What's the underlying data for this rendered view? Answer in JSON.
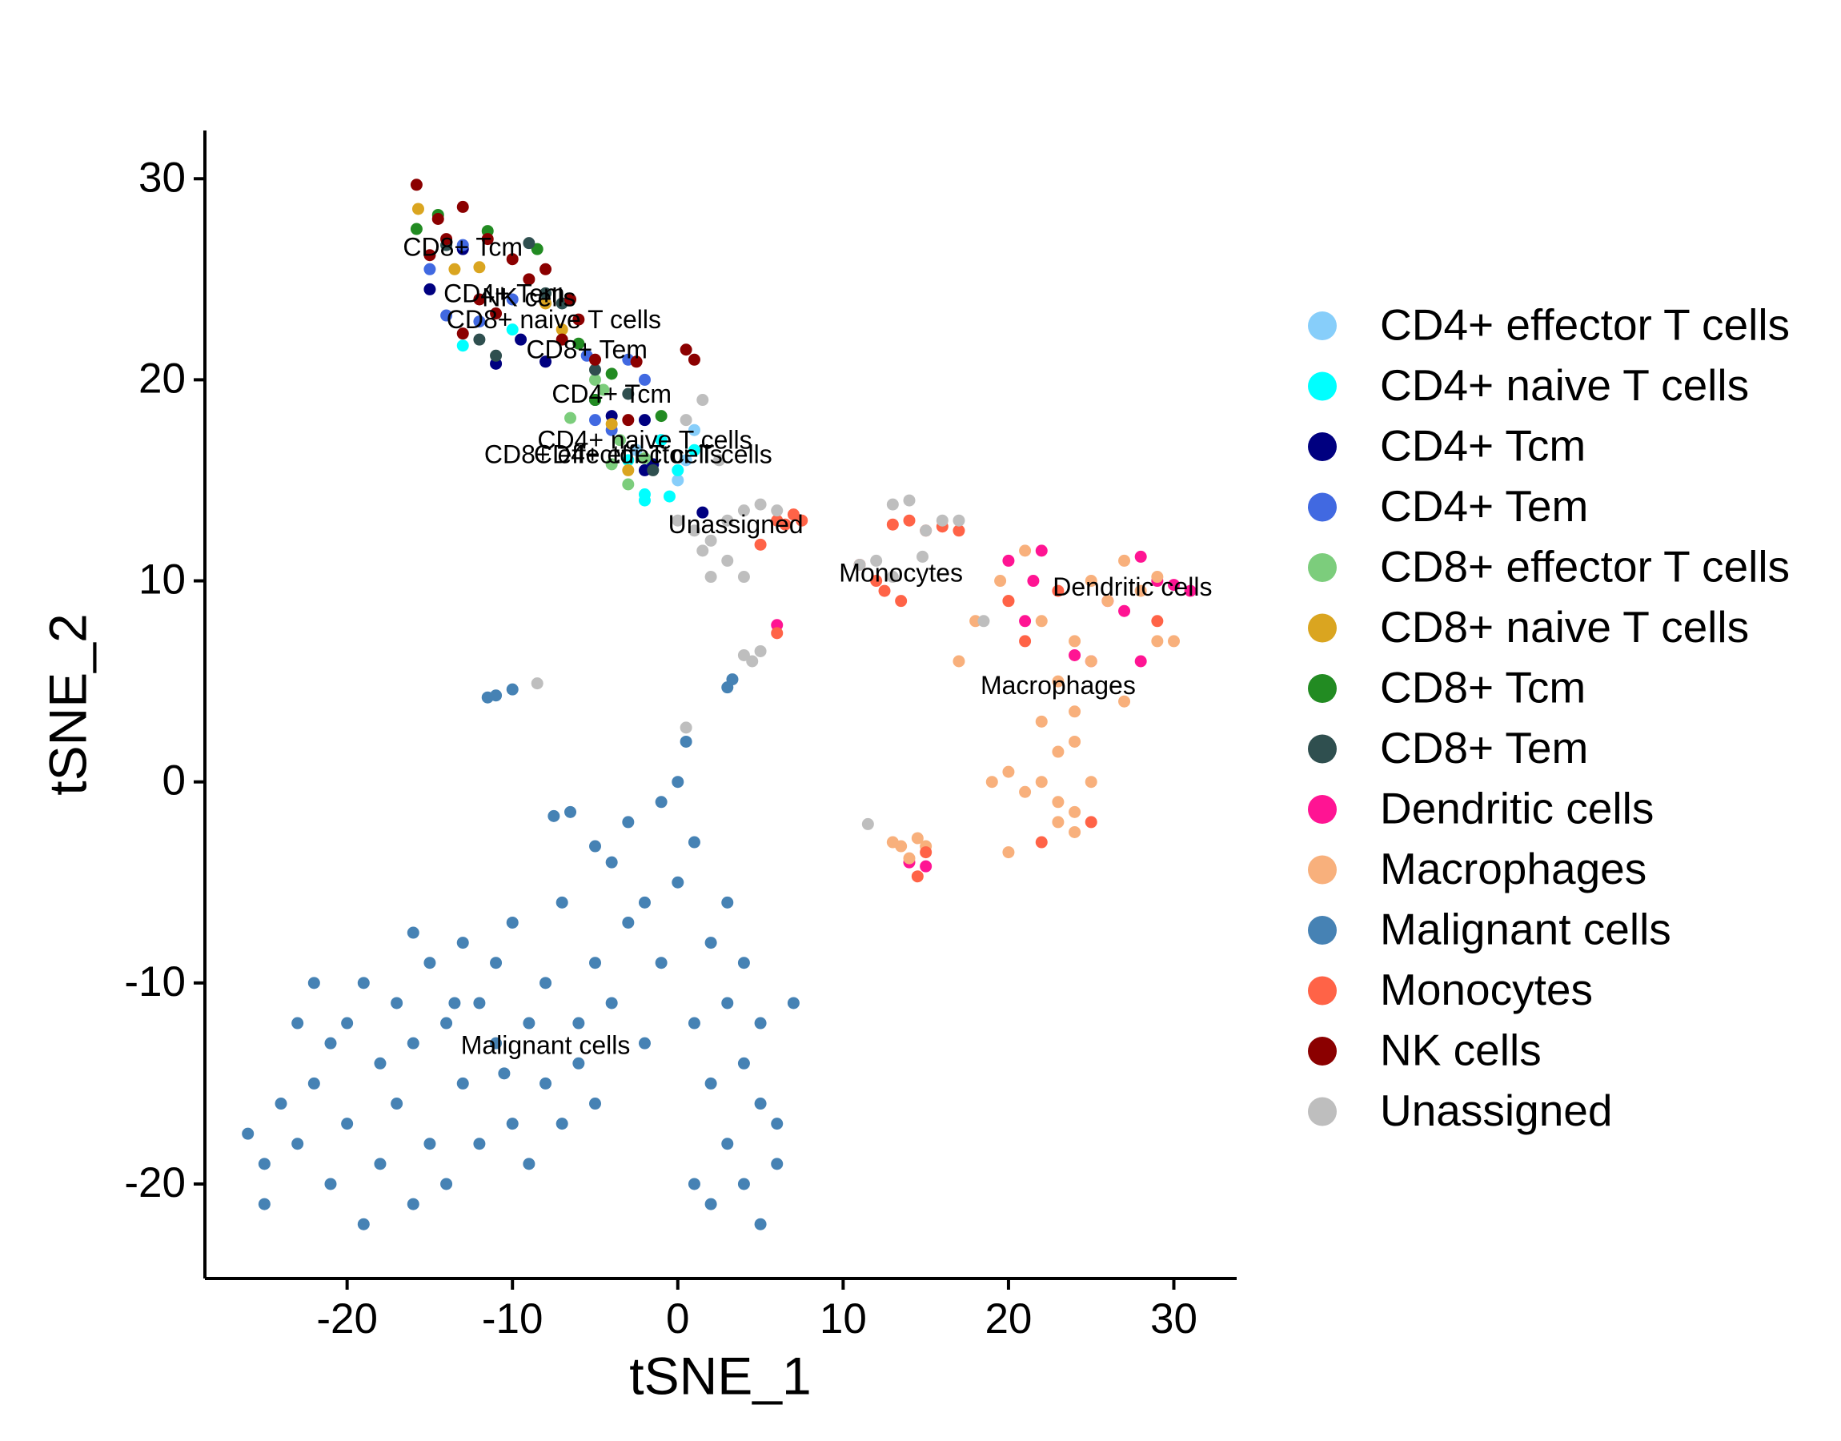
{
  "chart_data": {
    "type": "scatter",
    "x_label": "tSNE_1",
    "y_label": "tSNE_2",
    "xlim": [
      -28.6,
      33.8
    ],
    "ylim": [
      -24.7,
      32.4
    ],
    "xticks": [
      -20,
      -10,
      0,
      10,
      20,
      30
    ],
    "yticks": [
      -20,
      -10,
      0,
      10,
      20,
      30
    ],
    "grid": false,
    "legend": "right",
    "series": [
      {
        "name": "CD4+ effector T cells",
        "color": "#87CEFA",
        "label_at": [
          -1.5,
          16.2
        ],
        "x": [
          -1,
          0.5,
          -2.5,
          1,
          0
        ],
        "values": [
          17,
          16,
          16.5,
          17.5,
          15
        ]
      },
      {
        "name": "CD4+ naive T cells",
        "color": "#00FFFF",
        "label_at": [
          -2,
          16.9
        ],
        "x": [
          -13,
          -1,
          0,
          -2,
          -2,
          -3,
          -10,
          1,
          -0.5
        ],
        "values": [
          21.7,
          17,
          15.5,
          14.3,
          14,
          16,
          22.5,
          16.5,
          14.2
        ]
      },
      {
        "name": "CD4+ Tcm",
        "color": "#000080",
        "label_at": [
          -4,
          19.2
        ],
        "x": [
          -15,
          -11,
          -8,
          -5,
          -4,
          -2,
          -2,
          1.5,
          -13,
          -9.5,
          -1.5
        ],
        "values": [
          24.5,
          20.8,
          20.9,
          19,
          18.2,
          18,
          15.5,
          13.4,
          26.5,
          22,
          15.8
        ]
      },
      {
        "name": "CD4+ Tem",
        "color": "#4169E1",
        "label_at": [
          -10.5,
          24.2
        ],
        "x": [
          -15,
          -13,
          -14,
          -12,
          -10,
          -5,
          -4,
          -3,
          -2,
          -5.5
        ],
        "values": [
          25.5,
          26.7,
          23.2,
          22.9,
          24,
          18,
          17.5,
          21,
          20,
          21.2
        ]
      },
      {
        "name": "CD8+ effector T cells",
        "color": "#7CCD7C",
        "label_at": [
          -4.5,
          16.2
        ],
        "x": [
          -6.5,
          -3.5,
          -4,
          -3,
          -2,
          -5,
          -4.5
        ],
        "values": [
          18.1,
          17,
          15.8,
          14.8,
          16.1,
          20,
          19.5
        ]
      },
      {
        "name": "CD8+ naive T cells",
        "color": "#DAA520",
        "label_at": [
          -7.5,
          22.9
        ],
        "x": [
          -15.7,
          -13.5,
          -12,
          -8,
          -7,
          -4,
          -3
        ],
        "values": [
          28.5,
          25.5,
          25.6,
          23.8,
          22.5,
          17.8,
          15.5
        ]
      },
      {
        "name": "CD8+ Tcm",
        "color": "#228B22",
        "label_at": [
          -13,
          26.5
        ],
        "x": [
          -15.8,
          -14.5,
          -11.5,
          -8.5,
          -6,
          -4,
          -1,
          -5
        ],
        "values": [
          27.5,
          28.2,
          27.4,
          26.5,
          21.8,
          20.3,
          18.2,
          19
        ]
      },
      {
        "name": "CD8+ Tem",
        "color": "#2F4F4F",
        "label_at": [
          -5.5,
          21.4
        ],
        "x": [
          -14,
          -11,
          -9,
          -8,
          -7,
          -5,
          -3,
          -1.5,
          -12
        ],
        "values": [
          26.7,
          21.2,
          26.8,
          24.3,
          23.8,
          20.5,
          19.3,
          15.5,
          22
        ]
      },
      {
        "name": "Dendritic cells",
        "color": "#FF1493",
        "label_at": [
          27.5,
          9.6
        ],
        "x": [
          20,
          22,
          26,
          28,
          29,
          30,
          25,
          21,
          24,
          27,
          28,
          31,
          15,
          14,
          6,
          21.5
        ],
        "values": [
          11,
          11.5,
          9,
          11.2,
          10,
          9.8,
          6,
          8,
          6.3,
          8.5,
          6,
          9.5,
          -4.2,
          -4,
          7.8,
          10
        ]
      },
      {
        "name": "Macrophages",
        "color": "#F8B07C",
        "label_at": [
          23,
          4.7
        ],
        "x": [
          18,
          20,
          22,
          24,
          26,
          28,
          30,
          23,
          25,
          27,
          29,
          22,
          24,
          23,
          24,
          19,
          20,
          21,
          22,
          23,
          24,
          25,
          20,
          24,
          23,
          13,
          14,
          15,
          13.5,
          14.5,
          21,
          25,
          27,
          29,
          19.5,
          17
        ],
        "values": [
          8,
          9,
          8,
          7,
          9,
          9.5,
          7,
          5,
          6,
          4,
          7,
          3,
          2,
          1.5,
          3.5,
          0,
          0.5,
          -0.5,
          0,
          -1,
          -1.5,
          0,
          -3.5,
          -2.5,
          -2,
          -3,
          -3.8,
          -3.2,
          -3.2,
          -2.8,
          11.5,
          10,
          11,
          10.2,
          10,
          6
        ]
      },
      {
        "name": "Malignant cells",
        "color": "#4682B4",
        "label_at": [
          -8,
          -13.2
        ],
        "x": [
          -26,
          -25,
          -24,
          -23,
          -22,
          -22,
          -21,
          -20,
          -20,
          -19,
          -19,
          -18,
          -18,
          -17,
          -17,
          -16,
          -16,
          -15,
          -15,
          -14,
          -14,
          -13,
          -13,
          -12,
          -12,
          -11,
          -11,
          -10,
          -10,
          -9,
          -9,
          -8,
          -8,
          -7,
          -7,
          -6,
          -6,
          -5,
          -5,
          -4,
          -4,
          -3,
          -3,
          -2,
          -2,
          -1,
          -1,
          0,
          0,
          0.5,
          1,
          1,
          1,
          2,
          2,
          2,
          3,
          3,
          3,
          4,
          4,
          4,
          5,
          5,
          5,
          6,
          6,
          7,
          -11,
          -10,
          -11.5,
          3,
          3.3,
          -7.5,
          -6.5,
          -5,
          -23,
          -25,
          -21,
          -13.5,
          -10.5,
          -16
        ],
        "values": [
          -17.5,
          -19,
          -16,
          -18,
          -10,
          -15,
          -20,
          -12,
          -17,
          -10,
          -22,
          -14,
          -19,
          -11,
          -16,
          -21,
          -13,
          -18,
          -9,
          -12,
          -20,
          -8,
          -15,
          -11,
          -18,
          -9,
          -13,
          -17,
          -7,
          -12,
          -19,
          -10,
          -15,
          -6,
          -17,
          -12,
          -14,
          -9,
          -16,
          -4,
          -11,
          -2,
          -7,
          -13,
          -6,
          -1,
          -9,
          0,
          -5,
          2,
          -3,
          -12,
          -20,
          -8,
          -15,
          -21,
          -6,
          -11,
          -18,
          -9,
          -14,
          -20,
          -12,
          -16,
          -22,
          -17,
          -19,
          -11,
          4.3,
          4.6,
          4.2,
          4.7,
          5.1,
          -1.7,
          -1.5,
          -3.2,
          -12,
          -21,
          -13,
          -11,
          -14.5,
          -7.5
        ]
      },
      {
        "name": "Monocytes",
        "color": "#FF6347",
        "label_at": [
          13.5,
          10.3
        ],
        "x": [
          6,
          7,
          7.5,
          6.5,
          5,
          11,
          12,
          13,
          14,
          15,
          16,
          17,
          14.5,
          6,
          12.5,
          13.5,
          15,
          22,
          25,
          29,
          20,
          21,
          23
        ],
        "values": [
          13,
          13.3,
          13,
          12.8,
          11.8,
          10.8,
          10,
          12.8,
          13,
          12.5,
          12.7,
          12.5,
          -4.7,
          7.4,
          9.5,
          9,
          -3.5,
          -3,
          -2,
          8,
          9,
          7,
          9.5
        ]
      },
      {
        "name": "NK cells",
        "color": "#8B0000",
        "label_at": [
          -9,
          24
        ],
        "x": [
          -15.8,
          -14.5,
          -13,
          -11.5,
          -10,
          -9,
          -8,
          -6,
          -5,
          -12,
          -14,
          -7,
          -3,
          -2.5,
          0.5,
          1,
          -13,
          -11,
          -6.5,
          -15
        ],
        "values": [
          29.7,
          28,
          28.6,
          27,
          26,
          25,
          25.5,
          23,
          21,
          24,
          27,
          22,
          18,
          20.9,
          21.5,
          21,
          22.3,
          23.3,
          24,
          26.2
        ]
      },
      {
        "name": "Unassigned",
        "color": "#BEBEBE",
        "label_at": [
          3.5,
          12.7
        ],
        "x": [
          -8.5,
          0,
          1,
          1.5,
          2,
          3,
          4,
          5,
          6,
          2,
          3,
          4,
          5,
          0.5,
          1.5,
          2.5,
          13,
          14,
          15,
          16,
          17,
          11,
          12,
          13,
          14.8,
          4.5,
          4,
          11.5,
          0.5,
          18.5
        ],
        "values": [
          4.9,
          13,
          12.5,
          11.5,
          12,
          13,
          13.5,
          13.8,
          13.5,
          10.2,
          11,
          10.2,
          6.5,
          18,
          19,
          16,
          13.8,
          14,
          12.5,
          13,
          13,
          10.8,
          11,
          10.2,
          11.2,
          6,
          6.3,
          -2.1,
          2.7,
          8
        ]
      }
    ]
  }
}
